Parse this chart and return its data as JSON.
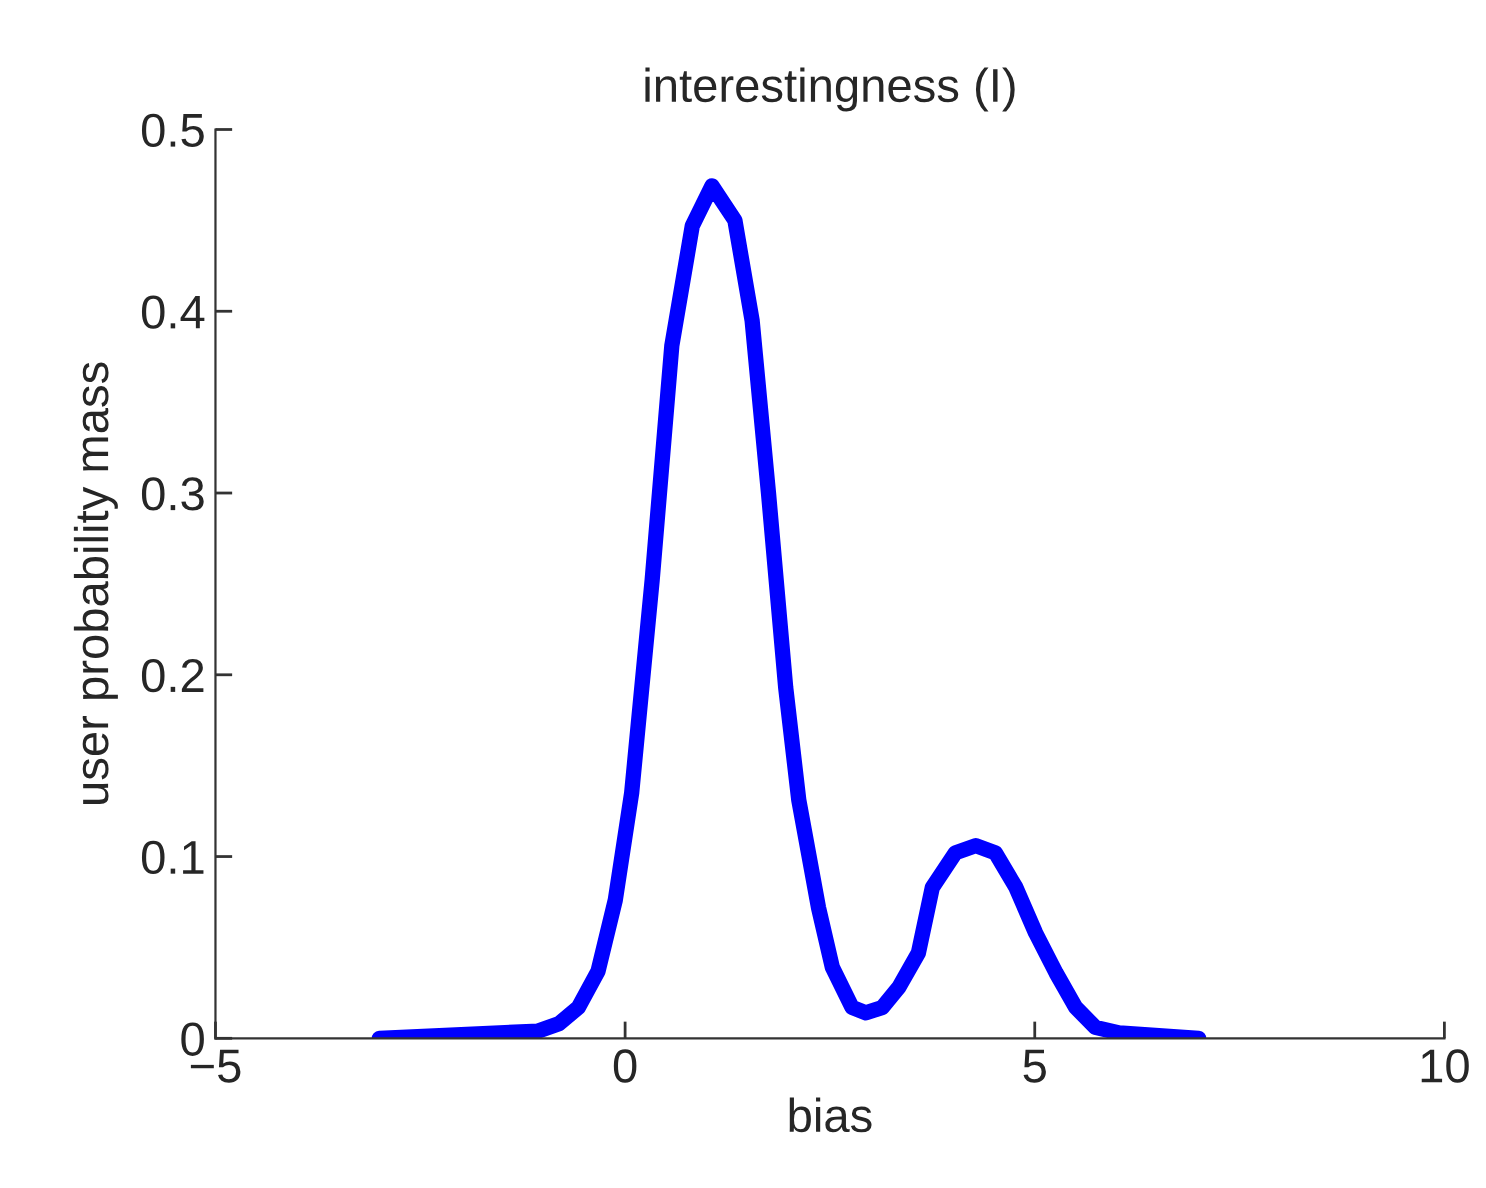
{
  "chart_data": {
    "type": "line",
    "title": "interestingness (I)",
    "xlabel": "bias",
    "ylabel": "user probability mass",
    "series": [
      {
        "color": "#0000ff",
        "x": [
          -3.0,
          -1.06,
          -0.81,
          -0.57,
          -0.33,
          -0.12,
          0.08,
          0.33,
          0.57,
          0.82,
          1.06,
          1.34,
          1.55,
          1.75,
          1.96,
          2.12,
          2.36,
          2.53,
          2.77,
          2.94,
          3.14,
          3.34,
          3.58,
          3.75,
          4.03,
          4.28,
          4.52,
          4.77,
          5.01,
          5.26,
          5.5,
          5.74,
          6.03,
          7.0
        ],
        "values": [
          0.0,
          0.004,
          0.008,
          0.017,
          0.037,
          0.076,
          0.135,
          0.252,
          0.381,
          0.447,
          0.469,
          0.45,
          0.395,
          0.3,
          0.193,
          0.131,
          0.072,
          0.039,
          0.017,
          0.014,
          0.017,
          0.028,
          0.047,
          0.083,
          0.102,
          0.106,
          0.102,
          0.083,
          0.058,
          0.036,
          0.017,
          0.006,
          0.003,
          0.0
        ]
      }
    ],
    "xlim": [
      -5,
      10
    ],
    "xticks": [
      {
        "value": -5,
        "label": "−5"
      },
      0,
      5,
      10
    ],
    "ylim": [
      0,
      0.5
    ],
    "yticks": [
      0,
      0.1,
      0.2,
      0.3,
      0.4,
      0.5
    ],
    "grid": false,
    "legend": false,
    "marker": "none",
    "line_style": "solid"
  }
}
